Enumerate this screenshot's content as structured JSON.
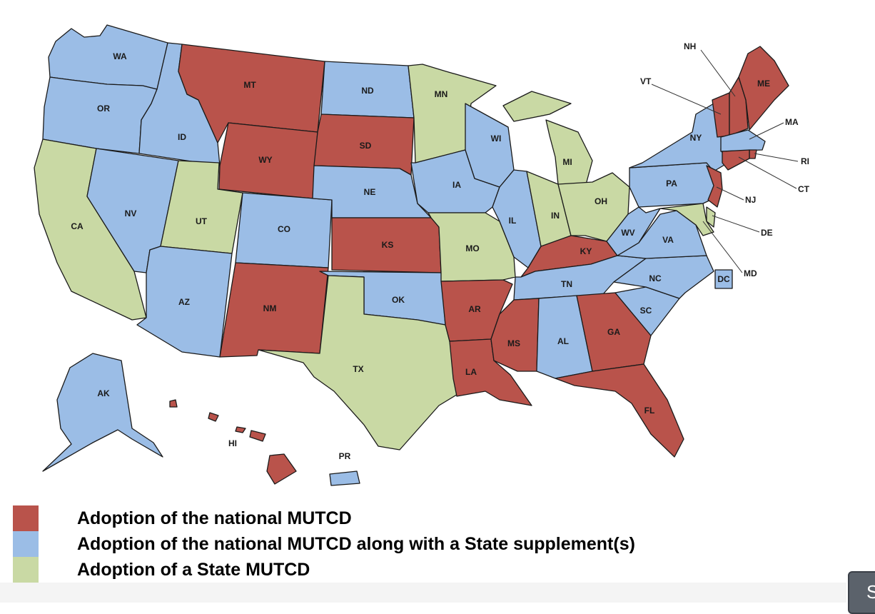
{
  "colors": {
    "national": "#b9534b",
    "supplement": "#9bbde6",
    "state": "#c9d9a4"
  },
  "legend": [
    {
      "category": "national",
      "label": "Adoption of the national MUTCD"
    },
    {
      "category": "supplement",
      "label": "Adoption of the national MUTCD along with a State supplement(s)"
    },
    {
      "category": "state",
      "label": "Adoption of a State MUTCD"
    }
  ],
  "states": [
    {
      "code": "WA",
      "category": "supplement"
    },
    {
      "code": "OR",
      "category": "supplement"
    },
    {
      "code": "CA",
      "category": "state"
    },
    {
      "code": "ID",
      "category": "supplement"
    },
    {
      "code": "NV",
      "category": "supplement"
    },
    {
      "code": "MT",
      "category": "national"
    },
    {
      "code": "WY",
      "category": "national"
    },
    {
      "code": "UT",
      "category": "state"
    },
    {
      "code": "AZ",
      "category": "supplement"
    },
    {
      "code": "CO",
      "category": "supplement"
    },
    {
      "code": "NM",
      "category": "national"
    },
    {
      "code": "ND",
      "category": "supplement"
    },
    {
      "code": "SD",
      "category": "national"
    },
    {
      "code": "NE",
      "category": "supplement"
    },
    {
      "code": "KS",
      "category": "national"
    },
    {
      "code": "OK",
      "category": "supplement"
    },
    {
      "code": "TX",
      "category": "state"
    },
    {
      "code": "MN",
      "category": "state"
    },
    {
      "code": "IA",
      "category": "supplement"
    },
    {
      "code": "MO",
      "category": "state"
    },
    {
      "code": "AR",
      "category": "national"
    },
    {
      "code": "LA",
      "category": "national"
    },
    {
      "code": "WI",
      "category": "supplement"
    },
    {
      "code": "IL",
      "category": "supplement"
    },
    {
      "code": "MI",
      "category": "state"
    },
    {
      "code": "IN",
      "category": "state"
    },
    {
      "code": "OH",
      "category": "state"
    },
    {
      "code": "KY",
      "category": "national"
    },
    {
      "code": "TN",
      "category": "supplement"
    },
    {
      "code": "MS",
      "category": "national"
    },
    {
      "code": "AL",
      "category": "supplement"
    },
    {
      "code": "GA",
      "category": "national"
    },
    {
      "code": "FL",
      "category": "national"
    },
    {
      "code": "SC",
      "category": "supplement"
    },
    {
      "code": "NC",
      "category": "supplement"
    },
    {
      "code": "VA",
      "category": "supplement"
    },
    {
      "code": "WV",
      "category": "supplement"
    },
    {
      "code": "PA",
      "category": "supplement"
    },
    {
      "code": "NY",
      "category": "supplement"
    },
    {
      "code": "NJ",
      "category": "national"
    },
    {
      "code": "DE",
      "category": "state"
    },
    {
      "code": "MD",
      "category": "state"
    },
    {
      "code": "DC",
      "category": "supplement"
    },
    {
      "code": "VT",
      "category": "national"
    },
    {
      "code": "NH",
      "category": "national"
    },
    {
      "code": "ME",
      "category": "national"
    },
    {
      "code": "MA",
      "category": "supplement"
    },
    {
      "code": "RI",
      "category": "national"
    },
    {
      "code": "CT",
      "category": "national"
    },
    {
      "code": "AK",
      "category": "supplement"
    },
    {
      "code": "HI",
      "category": "national"
    },
    {
      "code": "PR",
      "category": "supplement"
    }
  ],
  "corner_button": {
    "label": "S"
  }
}
